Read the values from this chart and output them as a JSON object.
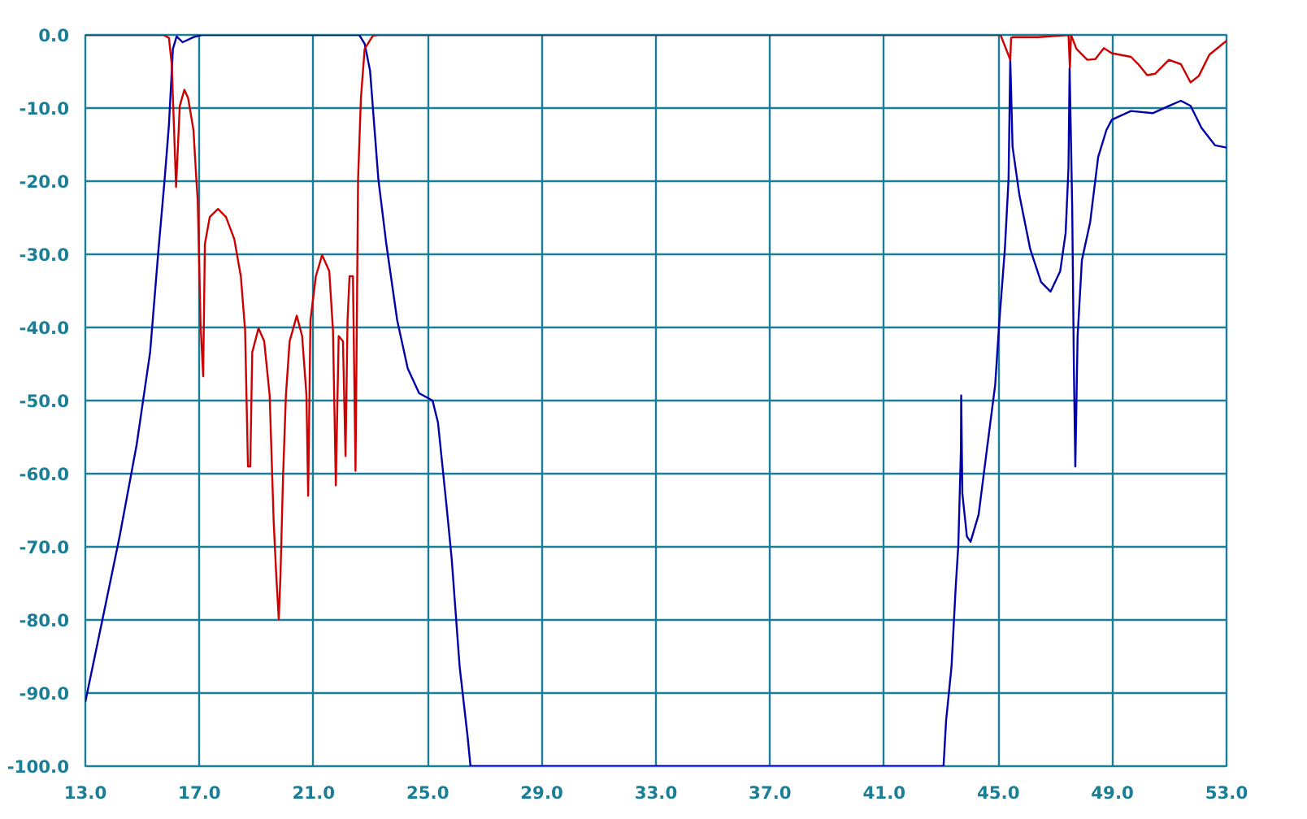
{
  "chart_data": {
    "type": "line",
    "grid": true,
    "line_style": "solid",
    "xlim": [
      13,
      53
    ],
    "ylim": [
      -100,
      0
    ],
    "xticks": [
      {
        "value": 13,
        "label": "13.0"
      },
      {
        "value": 17,
        "label": "17.0"
      },
      {
        "value": 21,
        "label": "21.0"
      },
      {
        "value": 25,
        "label": "25.0"
      },
      {
        "value": 29,
        "label": "29.0"
      },
      {
        "value": 33,
        "label": "33.0"
      },
      {
        "value": 37,
        "label": "37.0"
      },
      {
        "value": 41,
        "label": "41.0"
      },
      {
        "value": 45,
        "label": "45.0"
      },
      {
        "value": 49,
        "label": "49.0"
      },
      {
        "value": 53,
        "label": "53.0"
      }
    ],
    "yticks": [
      {
        "value": 0,
        "label": "0.0"
      },
      {
        "value": -10,
        "label": "-10.0"
      },
      {
        "value": -20,
        "label": "-20.0"
      },
      {
        "value": -30,
        "label": "-30.0"
      },
      {
        "value": -40,
        "label": "-40.0"
      },
      {
        "value": -50,
        "label": "-50.0"
      },
      {
        "value": -60,
        "label": "-60.0"
      },
      {
        "value": -70,
        "label": "-70.0"
      },
      {
        "value": -80,
        "label": "-80.0"
      },
      {
        "value": -90,
        "label": "-90.0"
      },
      {
        "value": -100,
        "label": "-100.0"
      }
    ],
    "series": [
      {
        "color": "#0000aa",
        "x": [
          13,
          13.08,
          13.65,
          14.2,
          14.8,
          15.27,
          15.55,
          15.78,
          15.93,
          16.07,
          16.2,
          16.41,
          16.8,
          17.08,
          22.6,
          22.79,
          22.98,
          23.27,
          23.55,
          23.93,
          24.3,
          24.7,
          25.17,
          25.36,
          25.65,
          25.84,
          26.12,
          26.4,
          26.5,
          43.08,
          43.17,
          43.36,
          43.51,
          43.6,
          43.69,
          43.7,
          43.74,
          43.9,
          44.03,
          44.31,
          44.6,
          44.89,
          45.04,
          45.23,
          45.36,
          45.42,
          45.5,
          45.74,
          46.12,
          46.5,
          46.83,
          47.17,
          47.36,
          47.46,
          47.5,
          47.59,
          47.65,
          47.7,
          47.78,
          47.93,
          48.22,
          48.5,
          48.79,
          48.98,
          49.65,
          50.41,
          50.98,
          51.4,
          51.74,
          52.12,
          52.6,
          53
        ],
        "values": [
          -91.2,
          -89.7,
          -79,
          -68.6,
          -56,
          -43.4,
          -30,
          -19.7,
          -12.3,
          -1.9,
          -0.2,
          -1,
          -0.3,
          0,
          0,
          -1.2,
          -4.9,
          -19.7,
          -28.6,
          -39,
          -45.6,
          -49,
          -50,
          -53,
          -64,
          -71.6,
          -86.4,
          -96,
          -100,
          -100,
          -93.8,
          -86.4,
          -75.3,
          -69.7,
          -56.7,
          -49.3,
          -62.7,
          -68.6,
          -69.3,
          -65.6,
          -56.7,
          -47.9,
          -39,
          -29.3,
          -19.7,
          -3.4,
          -15.3,
          -21.9,
          -29.3,
          -33.8,
          -35.1,
          -32.3,
          -27.1,
          -18.2,
          -4.5,
          -23.4,
          -45.6,
          -59,
          -41.2,
          -30.8,
          -25.6,
          -16.7,
          -13,
          -11.6,
          -10.4,
          -10.7,
          -9.7,
          -9,
          -9.7,
          -12.7,
          -15.1,
          -15.4
        ]
      },
      {
        "color": "#cc0000",
        "x": [
          13,
          15.74,
          15.93,
          16.03,
          16.18,
          16.31,
          16.47,
          16.6,
          16.79,
          16.89,
          16.94,
          17.04,
          17.13,
          17.19,
          17.36,
          17.65,
          17.93,
          18.22,
          18.45,
          18.6,
          18.7,
          18.78,
          18.85,
          19.07,
          19.27,
          19.46,
          19.6,
          19.69,
          19.78,
          19.84,
          19.93,
          20.03,
          20.16,
          20.41,
          20.6,
          20.75,
          20.81,
          20.89,
          21.08,
          21.3,
          21.55,
          21.68,
          21.78,
          21.88,
          22.03,
          22.12,
          22.19,
          22.26,
          22.38,
          22.47,
          22.56,
          22.66,
          22.79,
          23.08,
          23.27,
          45.08,
          45.42,
          45.45,
          45.5,
          46.4,
          47.46,
          47.51,
          47.55,
          47.74,
          48.12,
          48.4,
          48.7,
          48.98,
          49.65,
          49.93,
          50.22,
          50.5,
          50.98,
          51.4,
          51.74,
          52.03,
          52.4,
          53
        ],
        "values": [
          0,
          0,
          -0.4,
          -4.1,
          -20.8,
          -9.7,
          -7.5,
          -8.6,
          -13,
          -19.7,
          -22.7,
          -39.7,
          -46.7,
          -28.6,
          -24.9,
          -23.8,
          -24.9,
          -27.9,
          -33,
          -40.4,
          -59,
          -59,
          -43.4,
          -40.1,
          -41.9,
          -49.3,
          -66.4,
          -73.8,
          -79.9,
          -73.8,
          -60.4,
          -49.3,
          -41.9,
          -38.4,
          -41.2,
          -49.3,
          -63,
          -39,
          -33,
          -30.1,
          -32.3,
          -40.4,
          -61.6,
          -41.2,
          -41.9,
          -57.6,
          -39,
          -33,
          -33,
          -59.6,
          -19.7,
          -8.6,
          -1.9,
          -0.1,
          0,
          0,
          -3.4,
          -0.4,
          -0.3,
          -0.3,
          0,
          -4.5,
          0,
          -1.9,
          -3.4,
          -3.3,
          -1.8,
          -2.5,
          -3,
          -4.1,
          -5.5,
          -5.3,
          -3.4,
          -4,
          -6.5,
          -5.6,
          -2.7,
          -0.8
        ]
      }
    ]
  }
}
